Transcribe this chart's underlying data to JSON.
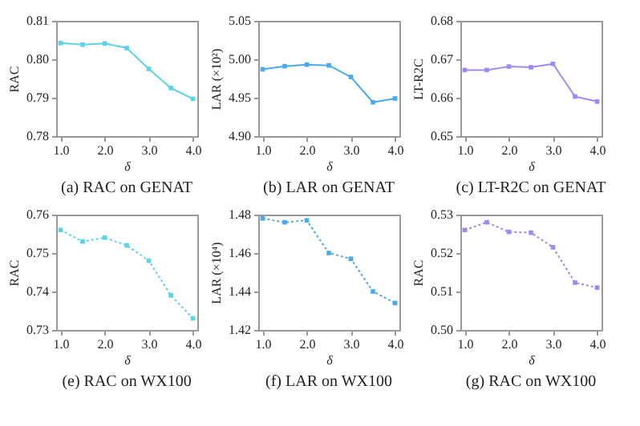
{
  "chart_data": [
    {
      "type": "line",
      "title": "(a) RAC on GENAT",
      "xlabel": "δ",
      "ylabel": "RAC",
      "x": [
        1.0,
        1.5,
        2.0,
        2.5,
        3.0,
        3.5,
        4.0
      ],
      "xlim": [
        0.9,
        4.1
      ],
      "xticks": [
        {
          "value": 1,
          "label": "1.0"
        },
        {
          "value": 2,
          "label": "2.0"
        },
        {
          "value": 3,
          "label": "3.0"
        },
        {
          "value": 4,
          "label": "4.0"
        }
      ],
      "ylim": [
        0.78,
        0.81
      ],
      "yticks": [
        0.78,
        0.79,
        {
          "value": 0.8,
          "label": "0.80"
        },
        0.81
      ],
      "marker": "square",
      "line_style": "solid",
      "series": [
        {
          "color": "#5ad4e6",
          "values": [
            0.8042,
            0.8038,
            0.8041,
            0.8029,
            0.7975,
            0.7925,
            0.7897
          ]
        }
      ]
    },
    {
      "type": "line",
      "title": "(b) LAR on GENAT",
      "xlabel": "δ",
      "ylabel": "LAR (×10²)",
      "x": [
        1.0,
        1.5,
        2.0,
        2.5,
        3.0,
        3.5,
        4.0
      ],
      "xlim": [
        0.9,
        4.1
      ],
      "xticks": [
        {
          "value": 1,
          "label": "1.0"
        },
        {
          "value": 2,
          "label": "2.0"
        },
        {
          "value": 3,
          "label": "3.0"
        },
        {
          "value": 4,
          "label": "4.0"
        }
      ],
      "ylim": [
        4.9,
        5.05
      ],
      "yticks": [
        {
          "value": 4.9,
          "label": "4.90"
        },
        4.95,
        {
          "value": 5,
          "label": "5.00"
        },
        5.05
      ],
      "marker": "square",
      "line_style": "solid",
      "series": [
        {
          "color": "#4aaaf0",
          "values": [
            4.987,
            4.991,
            4.993,
            4.992,
            4.977,
            4.944,
            4.949
          ]
        }
      ]
    },
    {
      "type": "line",
      "title": "(c) LT-R2C on GENAT",
      "xlabel": "δ",
      "ylabel": "LT-R2C",
      "x": [
        1.0,
        1.5,
        2.0,
        2.5,
        3.0,
        3.5,
        4.0
      ],
      "xlim": [
        0.9,
        4.1
      ],
      "xticks": [
        {
          "value": 1,
          "label": "1.0"
        },
        {
          "value": 2,
          "label": "2.0"
        },
        {
          "value": 3,
          "label": "3.0"
        },
        {
          "value": 4,
          "label": "4.0"
        }
      ],
      "ylim": [
        0.65,
        0.68
      ],
      "yticks": [
        0.65,
        0.66,
        0.67,
        0.68
      ],
      "marker": "square",
      "line_style": "solid",
      "series": [
        {
          "color": "#9b8cf5",
          "values": [
            0.6672,
            0.6672,
            0.6681,
            0.6679,
            0.6688,
            0.6603,
            0.659
          ]
        }
      ]
    },
    {
      "type": "line",
      "title": "(e) RAC on WX100",
      "xlabel": "δ",
      "ylabel": "RAC",
      "x": [
        1.0,
        1.5,
        2.0,
        2.5,
        3.0,
        3.5,
        4.0
      ],
      "xlim": [
        0.9,
        4.1
      ],
      "xticks": [
        {
          "value": 1,
          "label": "1.0"
        },
        {
          "value": 2,
          "label": "2.0"
        },
        {
          "value": 3,
          "label": "3.0"
        },
        {
          "value": 4,
          "label": "4.0"
        }
      ],
      "ylim": [
        0.73,
        0.76
      ],
      "yticks": [
        0.73,
        0.74,
        0.75,
        0.76
      ],
      "marker": "square",
      "line_style": "dotted",
      "series": [
        {
          "color": "#5ad4e6",
          "values": [
            0.756,
            0.753,
            0.754,
            0.752,
            0.748,
            0.739,
            0.733
          ]
        }
      ]
    },
    {
      "type": "line",
      "title": "(f) LAR on WX100",
      "xlabel": "δ",
      "ylabel": "LAR (×10⁴)",
      "x": [
        1.0,
        1.5,
        2.0,
        2.5,
        3.0,
        3.5,
        4.0
      ],
      "xlim": [
        0.9,
        4.1
      ],
      "xticks": [
        {
          "value": 1,
          "label": "1.0"
        },
        {
          "value": 2,
          "label": "2.0"
        },
        {
          "value": 3,
          "label": "3.0"
        },
        {
          "value": 4,
          "label": "4.0"
        }
      ],
      "ylim": [
        1.42,
        1.48
      ],
      "yticks": [
        1.42,
        1.44,
        1.46,
        1.48
      ],
      "marker": "square",
      "line_style": "dotted",
      "series": [
        {
          "color": "#4aaaf0",
          "values": [
            1.478,
            1.476,
            1.477,
            1.46,
            1.457,
            1.44,
            1.434
          ]
        }
      ]
    },
    {
      "type": "line",
      "title": "(g) RAC on WX100",
      "xlabel": "δ",
      "ylabel": "RAC",
      "x": [
        1.0,
        1.5,
        2.0,
        2.5,
        3.0,
        3.5,
        4.0
      ],
      "xlim": [
        0.9,
        4.1
      ],
      "xticks": [
        {
          "value": 1,
          "label": "1.0"
        },
        {
          "value": 2,
          "label": "2.0"
        },
        {
          "value": 3,
          "label": "3.0"
        },
        {
          "value": 4,
          "label": "4.0"
        }
      ],
      "ylim": [
        0.5,
        0.53
      ],
      "yticks": [
        {
          "value": 0.5,
          "label": "0.50"
        },
        0.51,
        0.52,
        0.53
      ],
      "marker": "square",
      "line_style": "dotted",
      "series": [
        {
          "color": "#9b8cf5",
          "values": [
            0.526,
            0.528,
            0.5255,
            0.5253,
            0.5215,
            0.5123,
            0.511
          ]
        }
      ]
    }
  ]
}
